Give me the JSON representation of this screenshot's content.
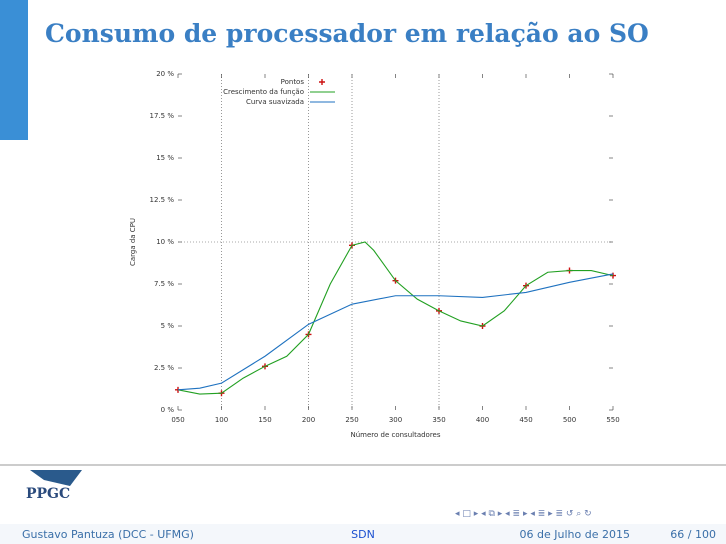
{
  "slide": {
    "title": "Consumo de processador em relação ao SO",
    "logo": "PPGC",
    "footer": {
      "author": "Gustavo Pantuza (DCC - UFMG)",
      "short_title": "SDN",
      "date": "06 de Julho de 2015",
      "page": "66 / 100"
    }
  },
  "chart_data": {
    "type": "line",
    "xlabel": "Número de consultadores",
    "ylabel": "Carga da CPU",
    "xlim": [
      50,
      550
    ],
    "xticks": [
      {
        "value": 50,
        "label": "050"
      },
      100,
      150,
      200,
      250,
      300,
      350,
      400,
      450,
      500,
      550
    ],
    "ylim": [
      0,
      20
    ],
    "yticks": [
      {
        "value": 0,
        "label": "0 %"
      },
      {
        "value": 2.5,
        "label": "2.5 %"
      },
      {
        "value": 5,
        "label": "5 %"
      },
      {
        "value": 7.5,
        "label": "7.5 %"
      },
      {
        "value": 10,
        "label": "10 %"
      },
      {
        "value": 12.5,
        "label": "12.5 %"
      },
      {
        "value": 15,
        "label": "15 %"
      },
      {
        "value": 17.5,
        "label": "17.5 %"
      },
      {
        "value": 20,
        "label": "20 %"
      }
    ],
    "xgrid": [
      100,
      200,
      250,
      350
    ],
    "ygrid": [
      10
    ],
    "legend": "top-right",
    "series": [
      {
        "name": "Pontos",
        "color": "#cc1111",
        "style": "points",
        "x": [
          50,
          100,
          150,
          200,
          250,
          300,
          350,
          400,
          450,
          500,
          550
        ],
        "values": [
          1.2,
          1.0,
          2.6,
          4.5,
          9.8,
          7.7,
          5.9,
          5.0,
          7.4,
          8.3,
          8.0
        ]
      },
      {
        "name": "Crescimento da função",
        "color": "#22a022",
        "style": "line",
        "x": [
          50,
          75,
          100,
          125,
          150,
          175,
          200,
          225,
          250,
          265,
          275,
          300,
          325,
          350,
          375,
          400,
          425,
          450,
          475,
          500,
          525,
          550
        ],
        "values": [
          1.2,
          0.95,
          1.0,
          1.9,
          2.6,
          3.2,
          4.5,
          7.5,
          9.8,
          10.0,
          9.5,
          7.7,
          6.6,
          5.9,
          5.3,
          5.0,
          5.9,
          7.4,
          8.2,
          8.3,
          8.3,
          8.0
        ]
      },
      {
        "name": "Curva suavizada",
        "color": "#1f72c0",
        "style": "line",
        "x": [
          50,
          75,
          100,
          150,
          200,
          250,
          300,
          350,
          400,
          450,
          500,
          550
        ],
        "values": [
          1.2,
          1.3,
          1.6,
          3.2,
          5.1,
          6.3,
          6.8,
          6.8,
          6.7,
          7.0,
          7.6,
          8.1
        ]
      }
    ]
  }
}
